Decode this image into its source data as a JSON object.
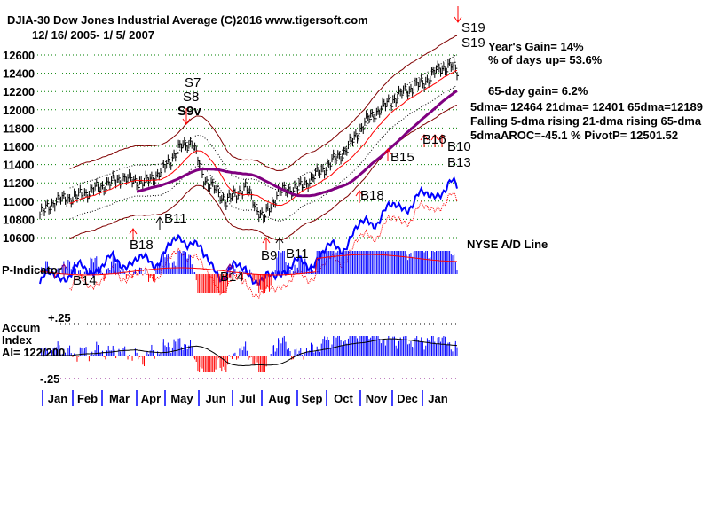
{
  "header": {
    "title": "DJIA-30  Dow Jones Industrial Average   (C)2016 www.tigersoft.com",
    "date_range": "12/ 16/ 2005- 1/ 5/ 2007"
  },
  "stats": {
    "years_gain": "Year's Gain= 14%",
    "pct_days_up": "% of days up= 53.6%",
    "gain65": "65-day gain= 6.2%",
    "mas": "5dma= 12464 21dma= 12401 65dma=12189",
    "trend": "Falling 5-dma  rising 21-dma  rising 65-dma",
    "aroc": "5dmaAROC=-45.1 %  PivotP= 12501.52"
  },
  "labels": {
    "ad_line": "NYSE A/D Line",
    "p_indicator": "P-Indicator",
    "accum1": "Accum",
    "accum2": "Index",
    "ai": "AI= 122/200",
    "plus25": "+.25",
    "minus25": "-.25"
  },
  "signals": [
    {
      "text": "S7",
      "kind": "sell"
    },
    {
      "text": "S8",
      "kind": "sell"
    },
    {
      "text": "S9v",
      "kind": "sell"
    },
    {
      "text": "S19",
      "kind": "sell"
    },
    {
      "text": "S19",
      "kind": "sell"
    },
    {
      "text": "B11",
      "kind": "buy"
    },
    {
      "text": "B18",
      "kind": "buy"
    },
    {
      "text": "B9",
      "kind": "buy"
    },
    {
      "text": "B11",
      "kind": "buy"
    },
    {
      "text": "B14",
      "kind": "buy"
    },
    {
      "text": "B14",
      "kind": "buy"
    },
    {
      "text": "B15",
      "kind": "buy"
    },
    {
      "text": "B18",
      "kind": "buy"
    },
    {
      "text": "B16",
      "kind": "buy"
    },
    {
      "text": "B10",
      "kind": "buy"
    },
    {
      "text": "B13",
      "kind": "buy"
    }
  ],
  "chart_data": {
    "type": "line",
    "title": "DJIA-30 Dow Jones Industrial Average",
    "y_ticks": [
      12600,
      12400,
      12200,
      12000,
      11800,
      11600,
      11400,
      11200,
      11000,
      10800,
      10600
    ],
    "ylim": [
      10600,
      12700
    ],
    "months": [
      "Jan",
      "Feb",
      "Mar",
      "Apr",
      "May",
      "Jun",
      "Jul",
      "Aug",
      "Sep",
      "Oct",
      "Nov",
      "Dec",
      "Jan"
    ],
    "price_keypoints": [
      [
        0,
        10850
      ],
      [
        10,
        11000
      ],
      [
        25,
        11050
      ],
      [
        40,
        11150
      ],
      [
        55,
        11250
      ],
      [
        70,
        11200
      ],
      [
        80,
        11300
      ],
      [
        95,
        11600
      ],
      [
        102,
        11650
      ],
      [
        110,
        11250
      ],
      [
        125,
        11000
      ],
      [
        138,
        11150
      ],
      [
        150,
        10800
      ],
      [
        160,
        11100
      ],
      [
        175,
        11150
      ],
      [
        190,
        11350
      ],
      [
        205,
        11550
      ],
      [
        220,
        11900
      ],
      [
        232,
        12050
      ],
      [
        245,
        12200
      ],
      [
        258,
        12300
      ],
      [
        268,
        12450
      ],
      [
        276,
        12480
      ],
      [
        280,
        12420
      ]
    ],
    "colors": {
      "grid": "#008000",
      "price": "#000000",
      "ma65": "#800080",
      "band": "#800000",
      "ad": "#0000ff",
      "pos": "#0000ff",
      "neg": "#ff0000"
    },
    "accum_range": [
      -0.25,
      0.25
    ]
  }
}
